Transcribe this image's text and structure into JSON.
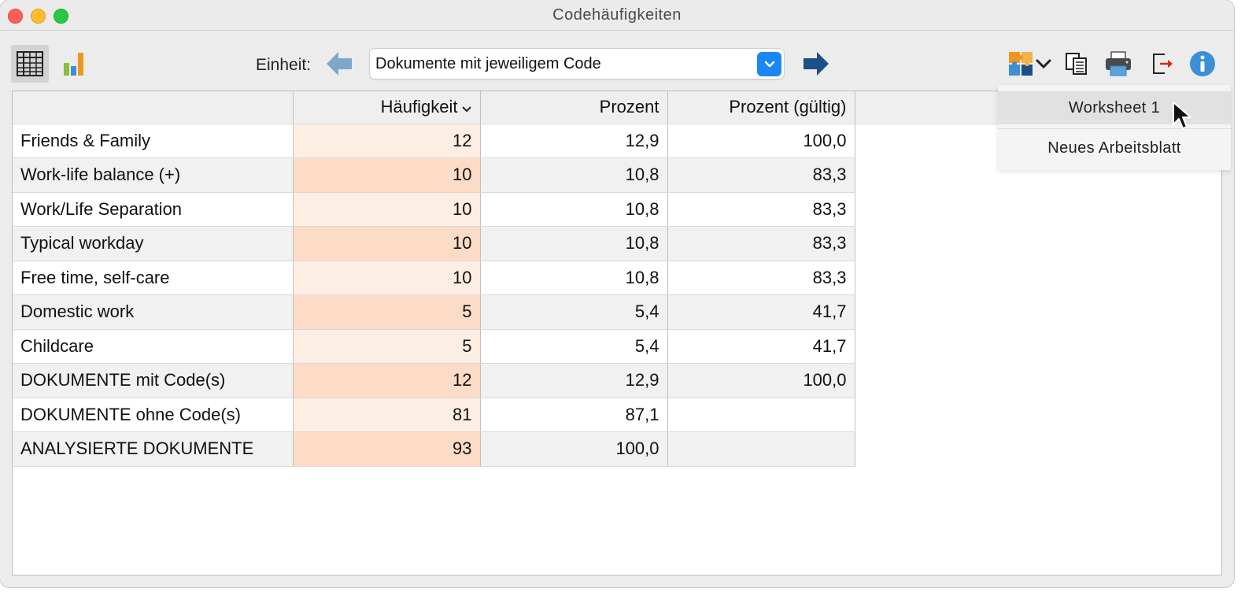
{
  "window": {
    "title": "Codehäufigkeiten"
  },
  "toolbar": {
    "unit_label": "Einheit:",
    "unit_select": {
      "value": "Dokumente mit jeweiligem Code"
    },
    "view_buttons": [
      {
        "icon": "table-icon",
        "active": true
      },
      {
        "icon": "bar-chart-icon",
        "active": false
      }
    ],
    "actions": [
      "export-puzzle-icon",
      "chevron-down-icon",
      "copy-icon",
      "print-icon",
      "export-icon",
      "info-icon"
    ]
  },
  "table": {
    "columns": [
      "",
      "Häufigkeit",
      "Prozent",
      "Prozent (gültig)"
    ],
    "sort_column": "Häufigkeit",
    "rows": [
      {
        "name": "Friends & Family",
        "freq": "12",
        "pct": "12,9",
        "pct_valid": "100,0"
      },
      {
        "name": "Work-life balance (+)",
        "freq": "10",
        "pct": "10,8",
        "pct_valid": "83,3"
      },
      {
        "name": "Work/Life Separation",
        "freq": "10",
        "pct": "10,8",
        "pct_valid": "83,3"
      },
      {
        "name": "Typical workday",
        "freq": "10",
        "pct": "10,8",
        "pct_valid": "83,3"
      },
      {
        "name": "Free time, self-care",
        "freq": "10",
        "pct": "10,8",
        "pct_valid": "83,3"
      },
      {
        "name": "Domestic work",
        "freq": "5",
        "pct": "5,4",
        "pct_valid": "41,7"
      },
      {
        "name": "Childcare",
        "freq": "5",
        "pct": "5,4",
        "pct_valid": "41,7"
      },
      {
        "name": "DOKUMENTE mit Code(s)",
        "freq": "12",
        "pct": "12,9",
        "pct_valid": "100,0"
      },
      {
        "name": "DOKUMENTE ohne Code(s)",
        "freq": "81",
        "pct": "87,1",
        "pct_valid": ""
      },
      {
        "name": "ANALYSIERTE DOKUMENTE",
        "freq": "93",
        "pct": "100,0",
        "pct_valid": ""
      }
    ]
  },
  "dropdown": {
    "items": [
      {
        "label": "Worksheet 1",
        "highlighted": true
      },
      {
        "label": "Neues Arbeitsblatt",
        "highlighted": false
      }
    ]
  },
  "colors": {
    "accent": "#1a87f5",
    "arrow_back": "#7ea7c9",
    "arrow_forward": "#1b4f86",
    "freq_odd": "#fdeee3",
    "freq_even": "#fddcc7",
    "info": "#3b8fd6"
  }
}
